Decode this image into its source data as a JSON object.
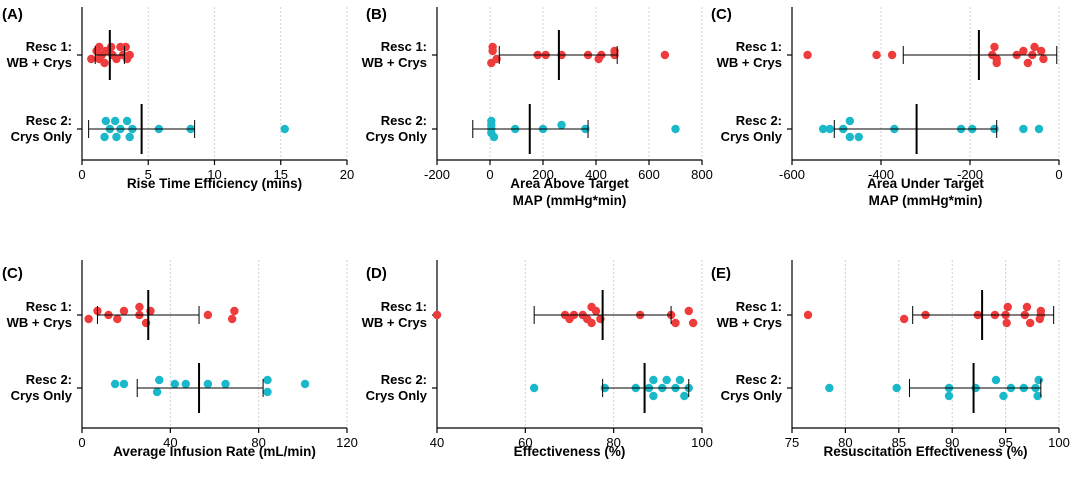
{
  "colors": {
    "resc1": "#ee3b3b",
    "resc2": "#1ab8c8",
    "grid": "#d0d0d0",
    "axis": "#000000"
  },
  "chart_data": [
    {
      "type": "scatter",
      "panel_label": "(A)",
      "xlabel": [
        "Rise Time Efficiency (mins)"
      ],
      "xlim": [
        0,
        20
      ],
      "xticks": [
        0,
        5,
        10,
        15,
        20
      ],
      "groups": [
        {
          "name": "Resc 1:",
          "name2": "WB + Crys",
          "points": [
            {
              "x": 1.3,
              "j": -1
            },
            {
              "x": 2.2,
              "j": -1
            },
            {
              "x": 2.9,
              "j": -1
            },
            {
              "x": 3.3,
              "j": -1
            },
            {
              "x": 1.1,
              "j": -0.5
            },
            {
              "x": 1.8,
              "j": -0.5
            },
            {
              "x": 1.5,
              "j": 0
            },
            {
              "x": 2.3,
              "j": 0
            },
            {
              "x": 3.1,
              "j": 0
            },
            {
              "x": 3.6,
              "j": 0
            },
            {
              "x": 0.7,
              "j": 0.5
            },
            {
              "x": 1.3,
              "j": 0.5
            },
            {
              "x": 2.6,
              "j": 0.5
            },
            {
              "x": 3.4,
              "j": 0.5
            },
            {
              "x": 1.7,
              "j": 1
            }
          ],
          "mean": 2.1,
          "sd_low": 1.0,
          "sd_high": 3.2
        },
        {
          "name": "Resc 2:",
          "name2": "Crys Only",
          "points": [
            {
              "x": 1.8,
              "j": -1
            },
            {
              "x": 2.5,
              "j": -1
            },
            {
              "x": 3.4,
              "j": -1
            },
            {
              "x": 2.1,
              "j": 0
            },
            {
              "x": 2.9,
              "j": 0
            },
            {
              "x": 3.8,
              "j": 0
            },
            {
              "x": 5.8,
              "j": 0
            },
            {
              "x": 8.2,
              "j": 0
            },
            {
              "x": 15.3,
              "j": 0
            },
            {
              "x": 1.7,
              "j": 1
            },
            {
              "x": 2.6,
              "j": 1
            },
            {
              "x": 3.6,
              "j": 1
            }
          ],
          "mean": 4.5,
          "sd_low": 0.5,
          "sd_high": 8.5
        }
      ]
    },
    {
      "type": "scatter",
      "panel_label": "(B)",
      "xlabel": [
        "Area Above Target",
        "MAP (mmHg*min)"
      ],
      "xlim": [
        -200,
        800
      ],
      "xticks": [
        -200,
        0,
        200,
        400,
        600,
        800
      ],
      "groups": [
        {
          "name": "Resc 1:",
          "name2": "WB + Crys",
          "points": [
            {
              "x": 10,
              "j": -1
            },
            {
              "x": 10,
              "j": -0.5
            },
            {
              "x": 470,
              "j": -0.5
            },
            {
              "x": 180,
              "j": 0
            },
            {
              "x": 210,
              "j": 0
            },
            {
              "x": 270,
              "j": 0
            },
            {
              "x": 370,
              "j": 0
            },
            {
              "x": 420,
              "j": 0
            },
            {
              "x": 470,
              "j": 0
            },
            {
              "x": 660,
              "j": 0
            },
            {
              "x": 25,
              "j": 0.5
            },
            {
              "x": 410,
              "j": 0.5
            },
            {
              "x": 5,
              "j": 1
            }
          ],
          "mean": 260,
          "sd_low": 35,
          "sd_high": 480
        },
        {
          "name": "Resc 2:",
          "name2": "Crys Only",
          "points": [
            {
              "x": 5,
              "j": -1
            },
            {
              "x": 5,
              "j": -0.5
            },
            {
              "x": 270,
              "j": -0.5
            },
            {
              "x": 5,
              "j": 0
            },
            {
              "x": 95,
              "j": 0
            },
            {
              "x": 200,
              "j": 0
            },
            {
              "x": 360,
              "j": 0
            },
            {
              "x": 700,
              "j": 0
            },
            {
              "x": 5,
              "j": 0.5
            },
            {
              "x": 15,
              "j": 1
            }
          ],
          "mean": 150,
          "sd_low": -65,
          "sd_high": 370
        }
      ]
    },
    {
      "type": "scatter",
      "panel_label": "(C)",
      "xlabel": [
        "Area Under Target",
        "MAP (mmHg*min)"
      ],
      "xlim": [
        -600,
        0
      ],
      "xticks": [
        -600,
        -400,
        -200,
        0
      ],
      "groups": [
        {
          "name": "Resc 1:",
          "name2": "WB + Crys",
          "points": [
            {
              "x": -145,
              "j": -1
            },
            {
              "x": -55,
              "j": -1
            },
            {
              "x": -80,
              "j": -0.5
            },
            {
              "x": -40,
              "j": -0.5
            },
            {
              "x": -565,
              "j": 0
            },
            {
              "x": -410,
              "j": 0
            },
            {
              "x": -375,
              "j": 0
            },
            {
              "x": -150,
              "j": 0
            },
            {
              "x": -95,
              "j": 0
            },
            {
              "x": -60,
              "j": 0
            },
            {
              "x": -140,
              "j": 0.5
            },
            {
              "x": -35,
              "j": 0.5
            },
            {
              "x": -140,
              "j": 1
            },
            {
              "x": -70,
              "j": 1
            }
          ],
          "mean": -180,
          "sd_low": -350,
          "sd_high": -5
        },
        {
          "name": "Resc 2:",
          "name2": "Crys Only",
          "points": [
            {
              "x": -470,
              "j": -1
            },
            {
              "x": -530,
              "j": 0
            },
            {
              "x": -515,
              "j": 0
            },
            {
              "x": -485,
              "j": 0
            },
            {
              "x": -370,
              "j": 0
            },
            {
              "x": -220,
              "j": 0
            },
            {
              "x": -195,
              "j": 0
            },
            {
              "x": -145,
              "j": 0
            },
            {
              "x": -80,
              "j": 0
            },
            {
              "x": -45,
              "j": 0
            },
            {
              "x": -470,
              "j": 1
            },
            {
              "x": -450,
              "j": 1
            }
          ],
          "mean": -320,
          "sd_low": -505,
          "sd_high": -140
        }
      ]
    },
    {
      "type": "scatter",
      "panel_label": "(C)",
      "xlabel": [
        "Average Infusion Rate (mL/min)"
      ],
      "xlim": [
        0,
        120
      ],
      "xticks": [
        0,
        40,
        80,
        120
      ],
      "groups": [
        {
          "name": "Resc 1:",
          "name2": "WB + Crys",
          "points": [
            {
              "x": 26,
              "j": -1
            },
            {
              "x": 7,
              "j": -0.5
            },
            {
              "x": 19,
              "j": -0.5
            },
            {
              "x": 31,
              "j": -0.5
            },
            {
              "x": 69,
              "j": -0.5
            },
            {
              "x": 12,
              "j": 0
            },
            {
              "x": 26,
              "j": 0
            },
            {
              "x": 57,
              "j": 0
            },
            {
              "x": 3,
              "j": 0.5
            },
            {
              "x": 16,
              "j": 0.5
            },
            {
              "x": 68,
              "j": 0.5
            },
            {
              "x": 29,
              "j": 1
            }
          ],
          "mean": 30,
          "sd_low": 7,
          "sd_high": 53
        },
        {
          "name": "Resc 2:",
          "name2": "Crys Only",
          "points": [
            {
              "x": 35,
              "j": -1
            },
            {
              "x": 84,
              "j": -1
            },
            {
              "x": 15,
              "j": -0.5
            },
            {
              "x": 19,
              "j": -0.5
            },
            {
              "x": 42,
              "j": -0.5
            },
            {
              "x": 47,
              "j": -0.5
            },
            {
              "x": 57,
              "j": -0.5
            },
            {
              "x": 65,
              "j": -0.5
            },
            {
              "x": 101,
              "j": -0.5
            },
            {
              "x": 34,
              "j": 0.5
            },
            {
              "x": 84,
              "j": 0.5
            }
          ],
          "mean": 53,
          "sd_low": 25,
          "sd_high": 82
        }
      ]
    },
    {
      "type": "scatter",
      "panel_label": "(D)",
      "xlabel": [
        "Effectiveness  (%)"
      ],
      "xlim": [
        40,
        100
      ],
      "xticks": [
        40,
        60,
        80,
        100
      ],
      "groups": [
        {
          "name": "Resc 1:",
          "name2": "WB + Crys",
          "points": [
            {
              "x": 75,
              "j": -1
            },
            {
              "x": 76,
              "j": -0.5
            },
            {
              "x": 97,
              "j": -0.5
            },
            {
              "x": 40,
              "j": 0
            },
            {
              "x": 69,
              "j": 0
            },
            {
              "x": 71,
              "j": 0
            },
            {
              "x": 73,
              "j": 0
            },
            {
              "x": 86,
              "j": 0
            },
            {
              "x": 93,
              "j": 0
            },
            {
              "x": 70,
              "j": 0.5
            },
            {
              "x": 74,
              "j": 0.5
            },
            {
              "x": 77,
              "j": 0.5
            },
            {
              "x": 75,
              "j": 1
            },
            {
              "x": 94,
              "j": 1
            },
            {
              "x": 98,
              "j": 1
            }
          ],
          "mean": 77.5,
          "sd_low": 62,
          "sd_high": 93
        },
        {
          "name": "Resc 2:",
          "name2": "Crys Only",
          "points": [
            {
              "x": 89,
              "j": -1
            },
            {
              "x": 92,
              "j": -1
            },
            {
              "x": 95,
              "j": -1
            },
            {
              "x": 62,
              "j": 0
            },
            {
              "x": 78,
              "j": 0
            },
            {
              "x": 85,
              "j": 0
            },
            {
              "x": 88,
              "j": 0
            },
            {
              "x": 91,
              "j": 0
            },
            {
              "x": 94,
              "j": 0
            },
            {
              "x": 97,
              "j": 0
            },
            {
              "x": 89,
              "j": 1
            },
            {
              "x": 96,
              "j": 1
            }
          ],
          "mean": 87,
          "sd_low": 77.5,
          "sd_high": 97
        }
      ]
    },
    {
      "type": "scatter",
      "panel_label": "(E)",
      "xlabel": [
        "Resuscitation Effectiveness (%)"
      ],
      "xlim": [
        75,
        100
      ],
      "xticks": [
        75,
        80,
        85,
        90,
        95,
        100
      ],
      "groups": [
        {
          "name": "Resc 1:",
          "name2": "WB + Crys",
          "points": [
            {
              "x": 95.2,
              "j": -1
            },
            {
              "x": 97,
              "j": -1
            },
            {
              "x": 98.3,
              "j": -0.5
            },
            {
              "x": 76.5,
              "j": 0
            },
            {
              "x": 87.5,
              "j": 0
            },
            {
              "x": 92.4,
              "j": 0
            },
            {
              "x": 94,
              "j": 0
            },
            {
              "x": 95,
              "j": 0
            },
            {
              "x": 96.8,
              "j": 0
            },
            {
              "x": 98.3,
              "j": 0
            },
            {
              "x": 85.5,
              "j": 0.5
            },
            {
              "x": 98.2,
              "j": 0.5
            },
            {
              "x": 95.1,
              "j": 1
            },
            {
              "x": 97.3,
              "j": 1
            }
          ],
          "mean": 92.8,
          "sd_low": 86.3,
          "sd_high": 99.5
        },
        {
          "name": "Resc 2:",
          "name2": "Crys Only",
          "points": [
            {
              "x": 94.1,
              "j": -1
            },
            {
              "x": 98.1,
              "j": -1
            },
            {
              "x": 78.5,
              "j": 0
            },
            {
              "x": 84.8,
              "j": 0
            },
            {
              "x": 89.7,
              "j": 0
            },
            {
              "x": 92.2,
              "j": 0
            },
            {
              "x": 95.5,
              "j": 0
            },
            {
              "x": 96.7,
              "j": 0
            },
            {
              "x": 97.8,
              "j": 0
            },
            {
              "x": 89.7,
              "j": 1
            },
            {
              "x": 94.8,
              "j": 1
            },
            {
              "x": 98,
              "j": 1
            }
          ],
          "mean": 92,
          "sd_low": 86,
          "sd_high": 98.3
        }
      ]
    }
  ]
}
